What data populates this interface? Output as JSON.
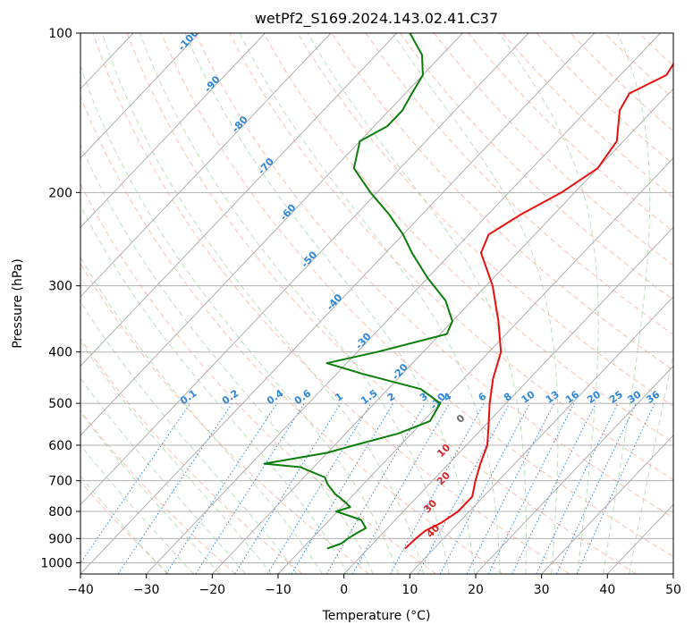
{
  "chart_data": {
    "type": "line",
    "title": "wetPf2_S169.2024.143.02.41.C37",
    "xlabel": "Temperature (°C)",
    "ylabel": "Pressure (hPa)",
    "xlim": [
      -40,
      50
    ],
    "ylim": [
      1050,
      100
    ],
    "y_scale": "log",
    "grid": true,
    "x_ticks": [
      -40,
      -30,
      -20,
      -10,
      0,
      10,
      20,
      30,
      40,
      50
    ],
    "y_ticks": [
      100,
      200,
      300,
      400,
      500,
      600,
      700,
      800,
      900,
      1000
    ],
    "colors": {
      "temperature": "#e6110f",
      "dewpoint": "#0a7d0a",
      "dry_adiabat": "#f6a58a",
      "moist_adiabat": "#8fcc8f",
      "mixing_ratio": "#2f86d8",
      "isotherm": "#b0b0b0",
      "label_blue": "#2f86d8",
      "label_red": "#d62728",
      "label_gray": "#666666"
    },
    "series": [
      {
        "key": "temperature",
        "points": [
          {
            "p": 940,
            "t": 5.6
          },
          {
            "p": 900,
            "t": 5.8
          },
          {
            "p": 870,
            "t": 6.1
          },
          {
            "p": 840,
            "t": 7.4
          },
          {
            "p": 800,
            "t": 8.3
          },
          {
            "p": 750,
            "t": 8.3
          },
          {
            "p": 700,
            "t": 6.5
          },
          {
            "p": 650,
            "t": 4.8
          },
          {
            "p": 600,
            "t": 3.2
          },
          {
            "p": 550,
            "t": 0.5
          },
          {
            "p": 500,
            "t": -2.5
          },
          {
            "p": 450,
            "t": -5.5
          },
          {
            "p": 400,
            "t": -8.2
          },
          {
            "p": 350,
            "t": -13.0
          },
          {
            "p": 300,
            "t": -19.0
          },
          {
            "p": 260,
            "t": -25.5
          },
          {
            "p": 240,
            "t": -27.0
          },
          {
            "p": 220,
            "t": -25.0
          },
          {
            "p": 200,
            "t": -22.0
          },
          {
            "p": 180,
            "t": -20.0
          },
          {
            "p": 160,
            "t": -21.0
          },
          {
            "p": 140,
            "t": -25.0
          },
          {
            "p": 130,
            "t": -26.0
          },
          {
            "p": 120,
            "t": -23.0
          },
          {
            "p": 110,
            "t": -24.0
          },
          {
            "p": 100,
            "t": -26.0
          }
        ]
      },
      {
        "key": "dewpoint",
        "points": [
          {
            "p": 940,
            "t": -6.2
          },
          {
            "p": 920,
            "t": -4.8
          },
          {
            "p": 900,
            "t": -4.5
          },
          {
            "p": 880,
            "t": -4.0
          },
          {
            "p": 860,
            "t": -3.3
          },
          {
            "p": 830,
            "t": -5.2
          },
          {
            "p": 800,
            "t": -10.2
          },
          {
            "p": 785,
            "t": -8.7
          },
          {
            "p": 770,
            "t": -10.0
          },
          {
            "p": 740,
            "t": -13.0
          },
          {
            "p": 710,
            "t": -15.5
          },
          {
            "p": 690,
            "t": -16.8
          },
          {
            "p": 660,
            "t": -22.0
          },
          {
            "p": 650,
            "t": -28.0
          },
          {
            "p": 620,
            "t": -20.0
          },
          {
            "p": 600,
            "t": -17.0
          },
          {
            "p": 570,
            "t": -12.0
          },
          {
            "p": 540,
            "t": -9.0
          },
          {
            "p": 500,
            "t": -10.0
          },
          {
            "p": 470,
            "t": -15.0
          },
          {
            "p": 440,
            "t": -26.0
          },
          {
            "p": 420,
            "t": -33.0
          },
          {
            "p": 400,
            "t": -27.0
          },
          {
            "p": 370,
            "t": -19.0
          },
          {
            "p": 350,
            "t": -20.0
          },
          {
            "p": 320,
            "t": -24.0
          },
          {
            "p": 290,
            "t": -30.0
          },
          {
            "p": 260,
            "t": -36.0
          },
          {
            "p": 240,
            "t": -40.0
          },
          {
            "p": 220,
            "t": -45.0
          },
          {
            "p": 200,
            "t": -51.0
          },
          {
            "p": 180,
            "t": -57.0
          },
          {
            "p": 160,
            "t": -60.0
          },
          {
            "p": 150,
            "t": -58.0
          },
          {
            "p": 140,
            "t": -58.0
          },
          {
            "p": 130,
            "t": -59.0
          },
          {
            "p": 120,
            "t": -60.0
          },
          {
            "p": 110,
            "t": -63.0
          },
          {
            "p": 100,
            "t": -68.0
          }
        ]
      }
    ],
    "mixing_ratio_labels": [
      "0.1",
      "0.2",
      "0.4",
      "0.6",
      "1",
      "1.5",
      "2",
      "3",
      "4",
      "6",
      "8",
      "10",
      "13",
      "16",
      "20",
      "25",
      "30",
      "36"
    ],
    "dry_adiabat_labels": [
      "-100",
      "-90",
      "-80",
      "-70",
      "-60",
      "-50",
      "-40",
      "-30",
      "-20",
      "-10"
    ],
    "moist_adiabat_labels": [
      "0",
      "10",
      "20",
      "30",
      "40"
    ]
  }
}
